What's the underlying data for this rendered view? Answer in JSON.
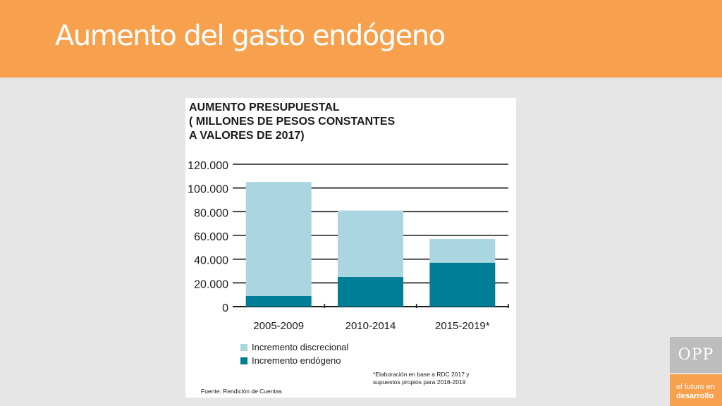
{
  "slide": {
    "title": "Aumento del gasto endógeno"
  },
  "logo": {
    "name": "OPP",
    "tagline_line1": "el futuro en",
    "tagline_line2": "desarrollo"
  },
  "colors": {
    "banner": "#f7a14f",
    "discrecional": "#a9d6e1",
    "endogeno": "#007e96"
  },
  "chart_data": {
    "type": "bar",
    "stacked": true,
    "title": "AUMENTO PRESUPUESTAL\n( MILLONES DE PESOS CONSTANTES\nA VALORES DE 2017)",
    "categories": [
      "2005-2009",
      "2010-2014",
      "2015-2019*"
    ],
    "series": [
      {
        "name": "Incremento endógeno",
        "values": [
          9000,
          25000,
          37000
        ],
        "color": "#007e96"
      },
      {
        "name": "Incremento discrecional",
        "values": [
          96000,
          56000,
          20000
        ],
        "color": "#a9d6e1"
      }
    ],
    "y_ticks": [
      "120.000",
      "100.000",
      "80.000",
      "60.000",
      "40.000",
      "20.000",
      "0"
    ],
    "y_tick_values": [
      120000,
      100000,
      80000,
      60000,
      40000,
      20000,
      0
    ],
    "ylim": [
      0,
      120000
    ],
    "grid": true,
    "legend_order": [
      "Incremento discrecional",
      "Incremento endógeno"
    ],
    "legend_position": "bottom-left",
    "footnote": "*Elaboración en base a RDC 2017 y\nsupuestos propios para 2018-2019",
    "source": "Fuente: Rendición de Cuentas"
  }
}
